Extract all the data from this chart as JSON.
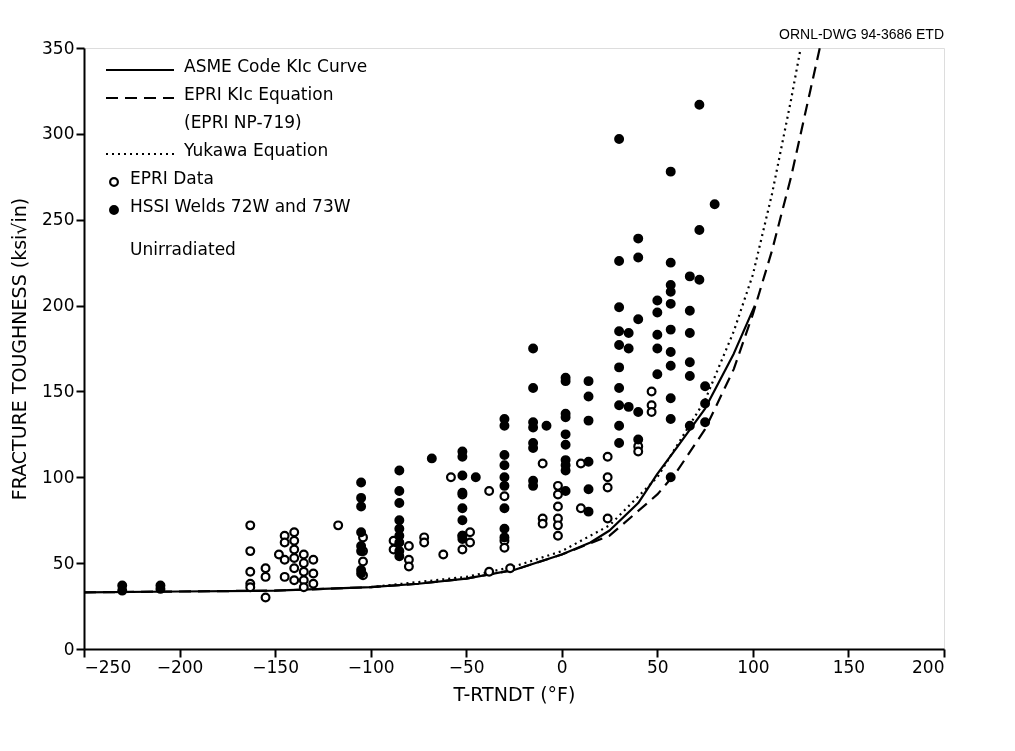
{
  "chart_data": {
    "type": "scatter",
    "xlabel": "T-RTNDT (°F)",
    "ylabel": "FRACTURE TOUGHNESS (ksi√in)",
    "xlim": [
      -250,
      200
    ],
    "xticks": [
      -250,
      -200,
      -150,
      -100,
      -50,
      0,
      50,
      100,
      150,
      200
    ],
    "ylim": [
      0,
      350
    ],
    "yticks": [
      0,
      50,
      100,
      150,
      200,
      250,
      300,
      350
    ],
    "grid": false,
    "legend": "top left",
    "annotations": [
      "ORNL-DWG 94-3686 ETD",
      "Unirradiated"
    ],
    "series": [
      {
        "name": "ASME Code KIc Curve",
        "type": "line",
        "line_style": "solid",
        "color": "#000000",
        "x": [
          -250,
          -200,
          -150,
          -100,
          -75,
          -50,
          -25,
          0,
          15,
          25,
          40,
          50,
          60,
          75,
          90,
          101
        ],
        "values": [
          33,
          33.5,
          34,
          36,
          38,
          41,
          46,
          55,
          62,
          69,
          85,
          102,
          117,
          140,
          172,
          200
        ]
      },
      {
        "name": "EPRI KIc Equation\n(EPRI NP-719)",
        "type": "line",
        "line_style": "dashed",
        "color": "#000000",
        "x": [
          -250,
          -200,
          -150,
          -100,
          -75,
          -50,
          -25,
          0,
          25,
          50,
          60,
          75,
          90,
          100,
          110,
          120,
          130,
          135
        ],
        "values": [
          33,
          33.5,
          34,
          36,
          38,
          41,
          46,
          55,
          66,
          90,
          103,
          128,
          163,
          195,
          232,
          275,
          325,
          350
        ]
      },
      {
        "name": "Yukawa Equation",
        "type": "line",
        "line_style": "dotted",
        "color": "#000000",
        "x": [
          -100,
          -75,
          -50,
          -25,
          0,
          25,
          50,
          75,
          90,
          100,
          110,
          120,
          125
        ],
        "values": [
          36,
          39,
          42,
          48,
          57,
          72,
          100,
          145,
          185,
          218,
          265,
          320,
          350
        ]
      },
      {
        "name": "EPRI Data",
        "marker": "circle",
        "color": "#ffffff",
        "x": [
          -163,
          -163,
          -163,
          -163,
          -163,
          -155,
          -155,
          -155,
          -148,
          -145,
          -145,
          -145,
          -145,
          -140,
          -140,
          -140,
          -140,
          -140,
          -140,
          -135,
          -135,
          -135,
          -135,
          -135,
          -130,
          -130,
          -130,
          -117,
          -104,
          -104,
          -104,
          -104,
          -88,
          -88,
          -80,
          -80,
          -80,
          -72,
          -72,
          -62,
          -58,
          -52,
          -52,
          -52,
          -48,
          -48,
          -38,
          -38,
          -30,
          -30,
          -30,
          -27,
          -10,
          -10,
          -10,
          -2,
          -2,
          -2,
          -2,
          -2,
          -2,
          10,
          10,
          24,
          24,
          24,
          24,
          47,
          47,
          47,
          40,
          40
        ],
        "values": [
          72,
          57,
          45,
          38,
          36,
          47,
          42,
          30,
          55,
          66,
          62,
          52,
          42,
          68,
          63,
          58,
          53,
          47,
          40,
          55,
          50,
          45,
          40,
          36,
          52,
          44,
          38,
          72,
          65,
          57,
          51,
          43,
          63,
          58,
          60,
          52,
          48,
          65,
          62,
          55,
          100,
          90,
          66,
          58,
          68,
          62,
          92,
          45,
          89,
          63,
          59,
          47,
          108,
          76,
          73,
          95,
          90,
          83,
          76,
          72,
          66,
          108,
          82,
          112,
          100,
          94,
          76,
          150,
          142,
          138,
          118,
          115
        ]
      },
      {
        "name": "HSSI Welds 72W and 73W",
        "marker": "circle",
        "color": "#000000",
        "x": [
          -230,
          -230,
          -210,
          -210,
          -105,
          -105,
          -105,
          -105,
          -105,
          -105,
          -105,
          -105,
          -85,
          -85,
          -85,
          -85,
          -85,
          -85,
          -85,
          -85,
          -85,
          -68,
          -52,
          -52,
          -52,
          -52,
          -52,
          -52,
          -52,
          -52,
          -45,
          -30,
          -30,
          -30,
          -30,
          -30,
          -30,
          -30,
          -30,
          -30,
          -15,
          -15,
          -15,
          -15,
          -15,
          -15,
          -15,
          -15,
          -8,
          2,
          2,
          2,
          2,
          2,
          2,
          2,
          2,
          2,
          2,
          14,
          14,
          14,
          14,
          14,
          14,
          30,
          30,
          30,
          30,
          30,
          30,
          30,
          30,
          30,
          30,
          35,
          35,
          35,
          40,
          40,
          40,
          40,
          40,
          50,
          50,
          50,
          50,
          50,
          57,
          57,
          57,
          57,
          57,
          57,
          57,
          57,
          57,
          57,
          57,
          67,
          67,
          67,
          67,
          67,
          67,
          72,
          72,
          72,
          75,
          75,
          75,
          80
        ],
        "values": [
          37,
          34,
          37,
          35,
          97,
          88,
          83,
          68,
          60,
          57,
          46,
          44,
          104,
          92,
          85,
          75,
          70,
          66,
          62,
          57,
          54,
          111,
          115,
          112,
          101,
          91,
          82,
          75,
          66,
          64,
          100,
          134,
          130,
          113,
          107,
          100,
          95,
          82,
          70,
          65,
          175,
          152,
          132,
          129,
          120,
          117,
          98,
          95,
          130,
          158,
          156,
          137,
          135,
          125,
          119,
          110,
          107,
          104,
          92,
          156,
          147,
          133,
          109,
          93,
          80,
          297,
          226,
          199,
          185,
          177,
          164,
          152,
          142,
          130,
          120,
          184,
          175,
          141,
          239,
          228,
          192,
          138,
          122,
          203,
          196,
          183,
          175,
          160,
          278,
          225,
          212,
          208,
          201,
          186,
          173,
          165,
          146,
          134,
          100,
          217,
          197,
          184,
          167,
          159,
          130,
          317,
          244,
          215,
          153,
          143,
          132,
          259
        ]
      }
    ]
  }
}
